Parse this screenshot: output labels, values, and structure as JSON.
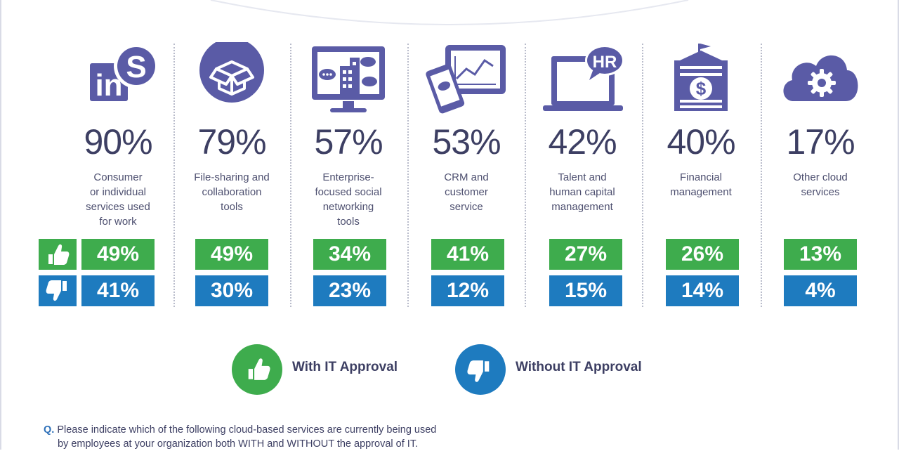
{
  "colors": {
    "with": "#3eac4d",
    "without": "#1e7bbf",
    "icon": "#5a5ba6",
    "text": "#3d3f63"
  },
  "chart_data": {
    "type": "bar",
    "categories": [
      "Consumer or individual services used for work",
      "File-sharing and collaboration tools",
      "Enterprise-focused social networking tools",
      "CRM and customer service",
      "Talent and human capital management",
      "Financial management",
      "Other cloud services"
    ],
    "totals": [
      "90%",
      "79%",
      "57%",
      "53%",
      "42%",
      "40%",
      "17%"
    ],
    "series": [
      {
        "name": "With IT Approval",
        "values": [
          "49%",
          "49%",
          "34%",
          "41%",
          "27%",
          "26%",
          "13%"
        ]
      },
      {
        "name": "Without IT Approval",
        "values": [
          "41%",
          "30%",
          "23%",
          "12%",
          "15%",
          "14%",
          "4%"
        ]
      }
    ],
    "legend_position": "bottom-center"
  },
  "columns": [
    {
      "icon": "linkedin-skype-icon",
      "label_lines": [
        "Consumer",
        "or individual",
        "services used",
        "for work"
      ]
    },
    {
      "icon": "dropbox-icon",
      "label_lines": [
        "File-sharing and",
        "collaboration",
        "tools"
      ]
    },
    {
      "icon": "social-network-monitor-icon",
      "label_lines": [
        "Enterprise-",
        "focused social",
        "networking",
        "tools"
      ]
    },
    {
      "icon": "crm-devices-icon",
      "label_lines": [
        "CRM and",
        "customer",
        "service"
      ]
    },
    {
      "icon": "hr-laptop-icon",
      "label_lines": [
        "Talent and",
        "human capital",
        "management"
      ]
    },
    {
      "icon": "financial-building-icon",
      "label_lines": [
        "Financial",
        "management"
      ]
    },
    {
      "icon": "cloud-gear-icon",
      "label_lines": [
        "Other cloud",
        "services"
      ]
    }
  ],
  "icon_text": {
    "linkedin": "in",
    "skype": "S",
    "hr": "HR",
    "dollar": "$"
  },
  "legend": {
    "with_label": "With IT Approval",
    "without_label": "Without IT Approval"
  },
  "question": {
    "mark": "Q.",
    "line1": "Please indicate which of the following cloud-based services are currently being used",
    "line2": "by employees at your organization both WITH and WITHOUT the approval of IT."
  }
}
